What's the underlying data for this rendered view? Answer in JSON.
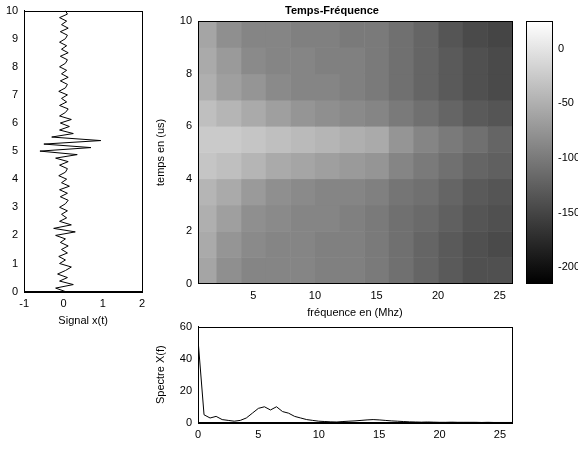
{
  "chart_data": [
    {
      "type": "line",
      "xlabel": "Signal x(t)",
      "color": "#000000",
      "grid": false,
      "x": [
        0.05,
        -0.2,
        0.25,
        -0.1,
        0.1,
        -0.15,
        0.05,
        0.2,
        -0.1,
        0.05,
        -0.12,
        0.1,
        -0.05,
        0.12,
        -0.08,
        0.05,
        -0.2,
        0.3,
        -0.25,
        0.2,
        -0.1,
        0.08,
        -0.05,
        0.1,
        -0.1,
        0.05,
        0.12,
        -0.08,
        0.1,
        -0.1,
        0.15,
        -0.05,
        0.08,
        -0.12,
        0.05,
        0.1,
        -0.1,
        0.12,
        -0.2,
        0.35,
        -0.6,
        0.7,
        -0.5,
        0.95,
        -0.3,
        0.25,
        -0.1,
        0.15,
        -0.08,
        0.2,
        -0.1,
        0.05,
        0.12,
        -0.1,
        0.08,
        -0.05,
        0.1,
        -0.12,
        0.05,
        0.1,
        -0.08,
        0.12,
        -0.05,
        0.08,
        -0.1,
        0.05,
        0.1,
        -0.08,
        0.12,
        -0.05,
        0.08,
        -0.1,
        0.05,
        0.1,
        -0.08,
        0.12,
        -0.05,
        0.08,
        -0.1,
        0.1,
        0.05
      ],
      "y": [
        0,
        0.125,
        0.25,
        0.375,
        0.5,
        0.625,
        0.75,
        0.875,
        1,
        1.125,
        1.25,
        1.375,
        1.5,
        1.625,
        1.75,
        1.875,
        2,
        2.125,
        2.25,
        2.375,
        2.5,
        2.625,
        2.75,
        2.875,
        3,
        3.125,
        3.25,
        3.375,
        3.5,
        3.625,
        3.75,
        3.875,
        4,
        4.125,
        4.25,
        4.375,
        4.5,
        4.625,
        4.75,
        4.875,
        5,
        5.125,
        5.25,
        5.375,
        5.5,
        5.625,
        5.75,
        5.875,
        6,
        6.125,
        6.25,
        6.375,
        6.5,
        6.625,
        6.75,
        6.875,
        7,
        7.125,
        7.25,
        7.375,
        7.5,
        7.625,
        7.75,
        7.875,
        8,
        8.125,
        8.25,
        8.375,
        8.5,
        8.625,
        8.75,
        8.875,
        9,
        9.125,
        9.25,
        9.375,
        9.5,
        9.625,
        9.75,
        9.875,
        10
      ],
      "xlim": [
        -1,
        2
      ],
      "xticks": [
        -1,
        0,
        1,
        2
      ],
      "ylim": [
        0,
        10
      ],
      "yticks": [
        0,
        1,
        2,
        3,
        4,
        5,
        6,
        7,
        8,
        9,
        10
      ]
    },
    {
      "type": "heatmap",
      "title": "Temps-Fréquence",
      "xlabel": "fréquence en (Mhz)",
      "ylabel": "temps en (us)",
      "grid": false,
      "x": [
        1,
        3,
        5,
        7,
        9,
        11,
        13,
        15,
        17,
        19,
        21,
        23,
        25
      ],
      "y": [
        0.5,
        1.5,
        2.5,
        3.5,
        4.5,
        5.5,
        6.5,
        7.5,
        8.5,
        9.5
      ],
      "cells": [
        [
          -60,
          -80,
          -90,
          -90,
          -90,
          -95,
          -95,
          -100,
          -110,
          -120,
          -130,
          -140,
          -140
        ],
        [
          -55,
          -75,
          -85,
          -90,
          -90,
          -95,
          -95,
          -100,
          -110,
          -120,
          -130,
          -140,
          -145
        ],
        [
          -50,
          -65,
          -80,
          -85,
          -90,
          -90,
          -95,
          -100,
          -110,
          -115,
          -125,
          -135,
          -140
        ],
        [
          -45,
          -55,
          -70,
          -80,
          -85,
          -90,
          -90,
          -95,
          -105,
          -110,
          -120,
          -130,
          -135
        ],
        [
          -30,
          -35,
          -45,
          -55,
          -60,
          -65,
          -70,
          -75,
          -90,
          -100,
          -110,
          -120,
          -125
        ],
        [
          -25,
          -25,
          -30,
          -35,
          -40,
          -45,
          -50,
          -55,
          -75,
          -90,
          -100,
          -110,
          -120
        ],
        [
          -35,
          -45,
          -55,
          -65,
          -75,
          -80,
          -85,
          -90,
          -100,
          -110,
          -120,
          -130,
          -135
        ],
        [
          -50,
          -65,
          -75,
          -85,
          -90,
          -90,
          -95,
          -100,
          -110,
          -120,
          -130,
          -140,
          -145
        ],
        [
          -55,
          -70,
          -85,
          -90,
          -90,
          -95,
          -95,
          -100,
          -110,
          -120,
          -130,
          -140,
          -145
        ],
        [
          -60,
          -80,
          -90,
          -90,
          -95,
          -95,
          -100,
          -100,
          -110,
          -120,
          -135,
          -145,
          -150
        ]
      ],
      "xlim": [
        0.5,
        26
      ],
      "xticks": [
        5,
        10,
        15,
        20,
        25
      ],
      "ylim": [
        0,
        10
      ],
      "yticks": [
        0,
        2,
        4,
        6,
        8,
        10
      ],
      "colorbar_range": [
        -215,
        25
      ],
      "colorbar_ticks": [
        -200,
        -150,
        -100,
        -50,
        0
      ]
    },
    {
      "type": "line",
      "ylabel": "Spectre X(f)",
      "color": "#000000",
      "grid": false,
      "x": [
        0,
        0.5,
        1,
        1.5,
        2,
        2.5,
        3,
        3.5,
        4,
        4.5,
        5,
        5.5,
        6,
        6.5,
        7,
        7.5,
        8,
        8.5,
        9,
        9.5,
        10,
        10.5,
        11,
        11.5,
        12,
        12.5,
        13,
        13.5,
        14,
        14.5,
        15,
        15.5,
        16,
        16.5,
        17,
        17.5,
        18,
        18.5,
        19,
        19.5,
        20,
        20.5,
        21,
        21.5,
        22,
        22.5,
        23,
        23.5,
        24,
        24.5,
        25,
        25.5,
        26
      ],
      "values": [
        52,
        5,
        3,
        4,
        2,
        1.5,
        1,
        1.5,
        3,
        6,
        9,
        10,
        8,
        10,
        7,
        6,
        4,
        3,
        2,
        1.5,
        1,
        0.8,
        0.6,
        0.5,
        0.8,
        1,
        1.2,
        1.5,
        1.8,
        2,
        1.8,
        1.5,
        1.2,
        1,
        0.8,
        0.6,
        0.5,
        0.4,
        0.5,
        0.4,
        0.3,
        0.3,
        0.4,
        0.3,
        0.3,
        0.3,
        0.3,
        0.2,
        0.3,
        0.2,
        0.2,
        0.2,
        0.2
      ],
      "xlim": [
        0,
        26
      ],
      "xticks": [
        0,
        5,
        10,
        15,
        20,
        25
      ],
      "ylim": [
        0,
        60
      ],
      "yticks": [
        0,
        20,
        40,
        60
      ]
    }
  ]
}
